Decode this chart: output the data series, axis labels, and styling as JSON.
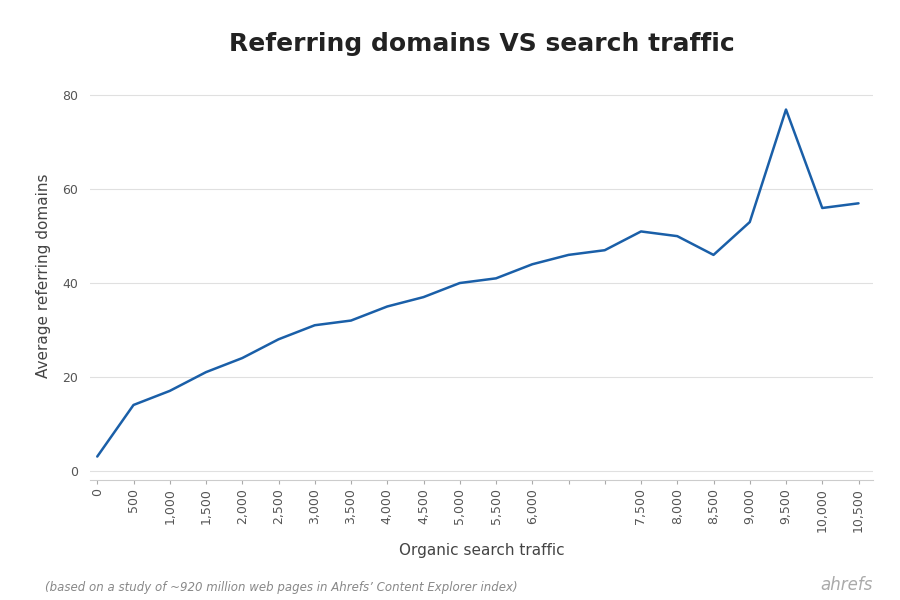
{
  "title": "Referring domains VS search traffic",
  "xlabel": "Organic search traffic",
  "ylabel": "Average referring domains",
  "footnote": "(based on a study of ~920 million web pages in Ahrefs’ Content Explorer index)",
  "ahrefs_label": "ahrefs",
  "x": [
    0,
    500,
    1000,
    1500,
    2000,
    2500,
    3000,
    3500,
    4000,
    4500,
    5000,
    5500,
    6000,
    6500,
    7000,
    7500,
    8000,
    8500,
    9000,
    9500,
    10000,
    10500
  ],
  "y": [
    3,
    14,
    17,
    21,
    24,
    28,
    31,
    32,
    35,
    37,
    40,
    41,
    44,
    46,
    47,
    51,
    50,
    46,
    53,
    77,
    56,
    57
  ],
  "xtick_labels": [
    "0",
    "500",
    "1,000",
    "1,500",
    "2,000",
    "2,500",
    "3,000",
    "3,500",
    "4,000",
    "4,500",
    "5,000",
    "5,500",
    "6,000",
    "",
    "",
    "7,500",
    "8,000",
    "8,500",
    "9,000",
    "9,500",
    "10,000",
    "10,500"
  ],
  "line_color": "#1a5fa8",
  "line_width": 1.8,
  "background_color": "#ffffff",
  "xlim": [
    -100,
    10700
  ],
  "ylim": [
    -2,
    85
  ],
  "yticks": [
    0,
    20,
    40,
    60,
    80
  ],
  "grid_color": "#e0e0e0",
  "title_fontsize": 18,
  "label_fontsize": 11,
  "tick_fontsize": 9,
  "footnote_fontsize": 8.5,
  "ahrefs_fontsize": 12
}
